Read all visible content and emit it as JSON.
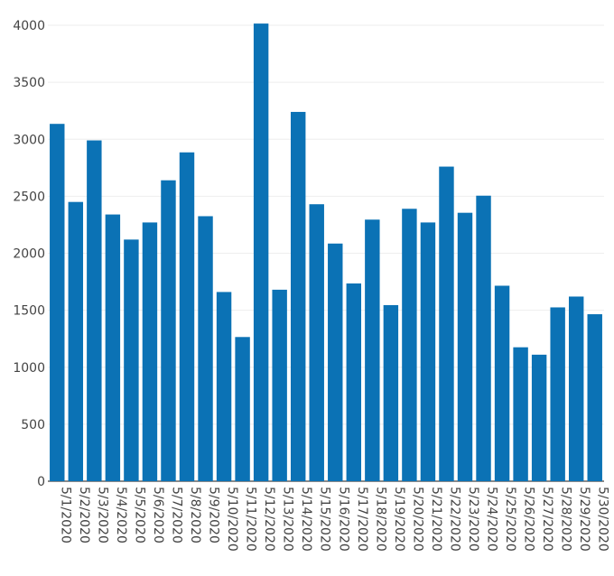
{
  "chart_data": {
    "type": "bar",
    "categories": [
      "5/1/2020",
      "5/2/2020",
      "5/3/2020",
      "5/4/2020",
      "5/5/2020",
      "5/6/2020",
      "5/7/2020",
      "5/8/2020",
      "5/9/2020",
      "5/10/2020",
      "5/11/2020",
      "5/12/2020",
      "5/13/2020",
      "5/14/2020",
      "5/15/2020",
      "5/16/2020",
      "5/17/2020",
      "5/18/2020",
      "5/19/2020",
      "5/20/2020",
      "5/21/2020",
      "5/22/2020",
      "5/23/2020",
      "5/24/2020",
      "5/25/2020",
      "5/26/2020",
      "5/27/2020",
      "5/28/2020",
      "5/29/2020",
      "5/30/2020"
    ],
    "values": [
      3135,
      2450,
      2990,
      2340,
      2120,
      2270,
      2640,
      2885,
      2325,
      1660,
      1265,
      4015,
      1680,
      3240,
      2430,
      2085,
      1735,
      2295,
      1545,
      2390,
      2270,
      2760,
      2355,
      2505,
      1715,
      1175,
      1110,
      1525,
      1620,
      1465
    ],
    "title": "",
    "xlabel": "",
    "ylabel": "",
    "ylim": [
      0,
      4000
    ],
    "yticks": [
      0,
      500,
      1000,
      1500,
      2000,
      2500,
      3000,
      3500,
      4000
    ],
    "grid": true,
    "bar_color": "#0b72b5"
  }
}
